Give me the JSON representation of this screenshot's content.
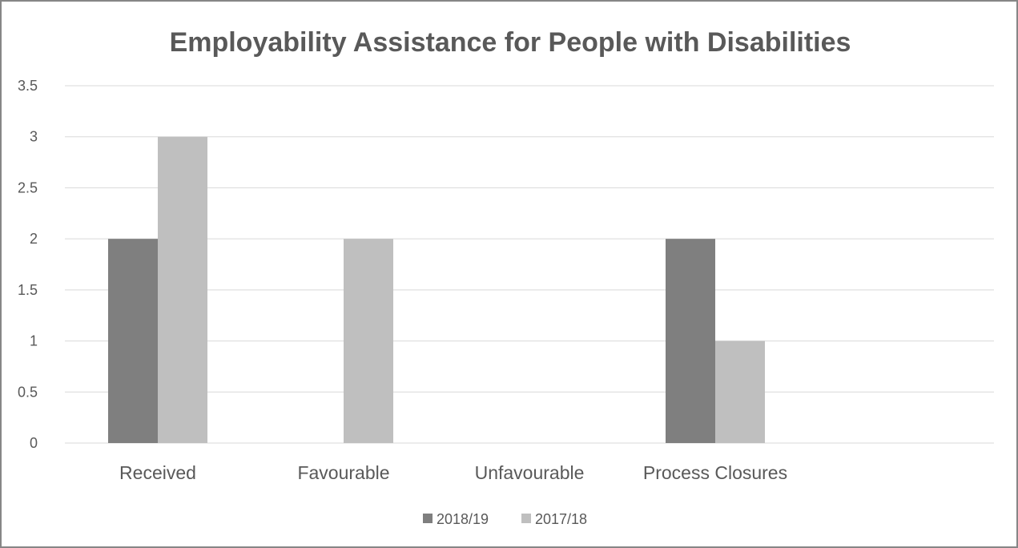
{
  "chart_data": {
    "type": "bar",
    "title": "Employability Assistance for People with Disabilities",
    "xlabel": "",
    "ylabel": "",
    "categories": [
      "Received",
      "Favourable",
      "Unfavourable",
      "Process Closures",
      ""
    ],
    "series": [
      {
        "name": "2018/19",
        "color": "#7f7f7f",
        "values": [
          2,
          0,
          0,
          2,
          0
        ]
      },
      {
        "name": "2017/18",
        "color": "#bfbfbf",
        "values": [
          3,
          2,
          0,
          1,
          0
        ]
      }
    ],
    "ylim": [
      0,
      3.5
    ],
    "yticks": [
      "0",
      "0.5",
      "1",
      "1.5",
      "2",
      "2.5",
      "3",
      "3.5"
    ],
    "grid": true,
    "legend_position": "bottom"
  }
}
